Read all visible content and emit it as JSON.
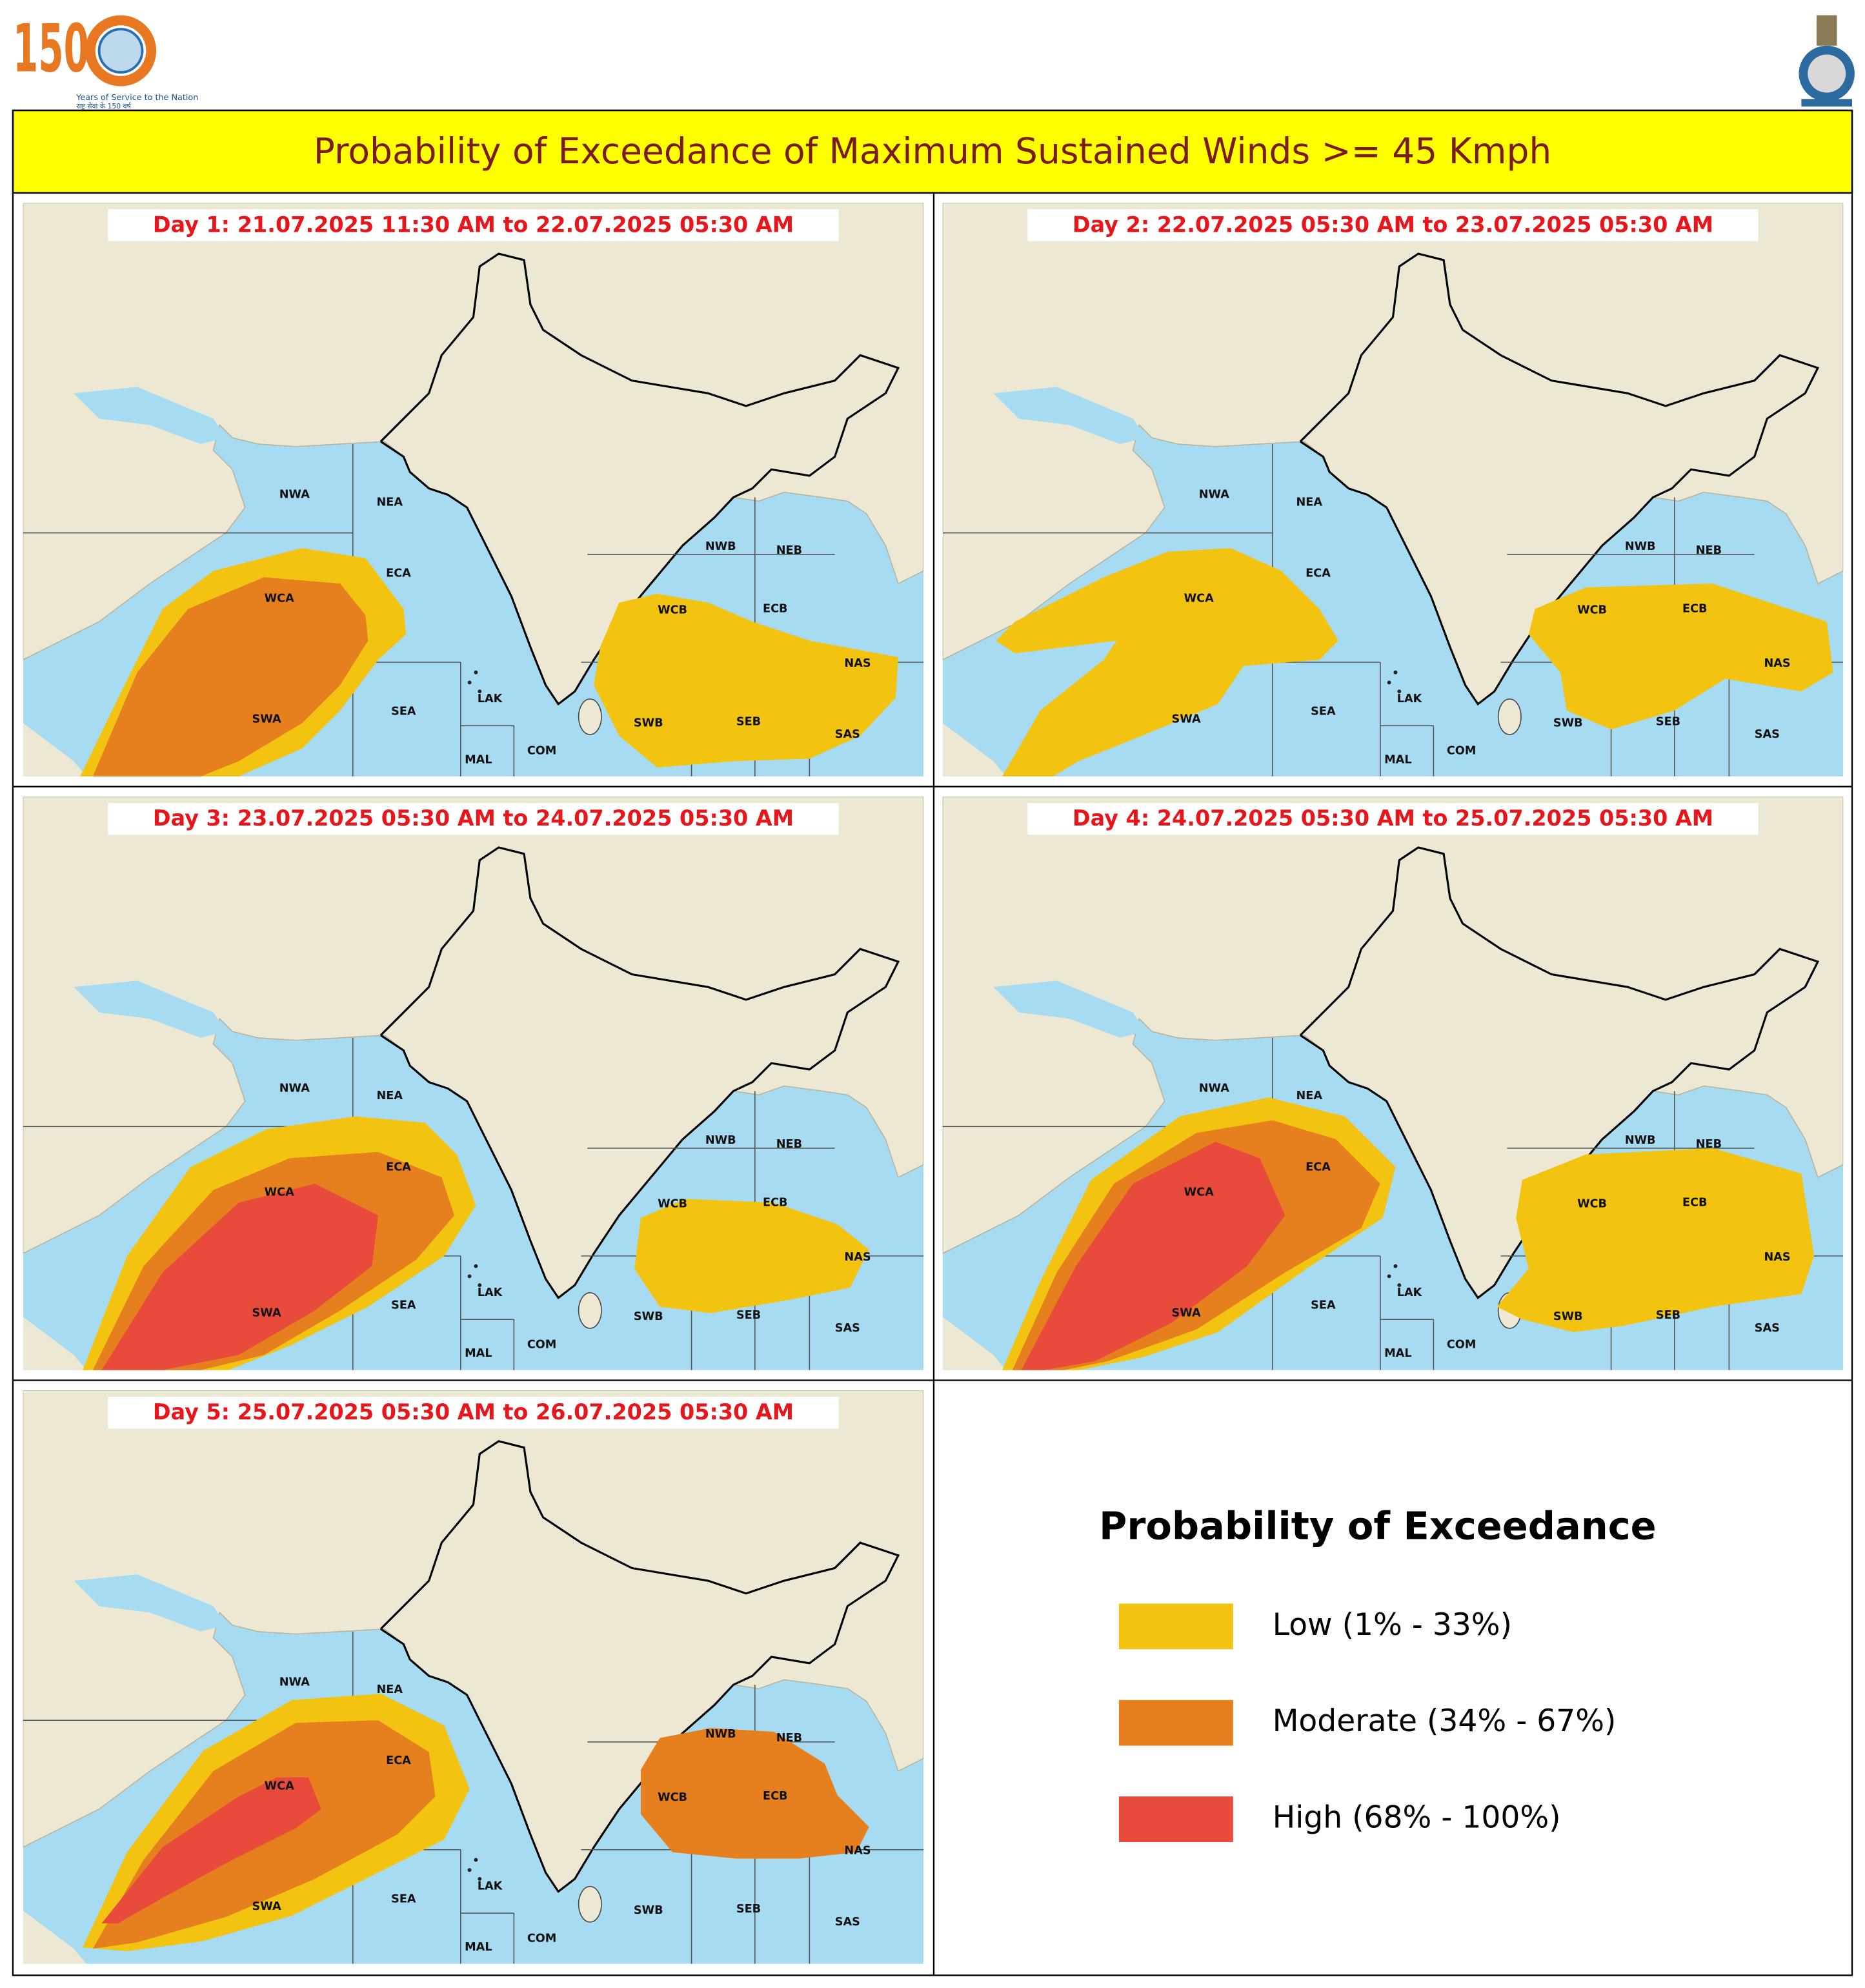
{
  "header": {
    "logo_number": "150",
    "logo_tagline": "Years of Service to the Nation",
    "logo_hindi": "राष्ट्र सेवा के 150 वर्ष"
  },
  "title": "Probability of Exceedance of Maximum Sustained Winds >= 45 Kmph",
  "regions": [
    "NWA",
    "NEA",
    "ECA",
    "WCA",
    "SWA",
    "SEA",
    "LAK",
    "MAL",
    "COM",
    "NWB",
    "NEB",
    "WCB",
    "ECB",
    "NAS",
    "SWB",
    "SEB",
    "SAS"
  ],
  "days": [
    {
      "label": "Day 1: 21.07.2025 11:30 AM to 22.07.2025 05:30 AM"
    },
    {
      "label": "Day 2: 22.07.2025 05:30 AM to 23.07.2025 05:30 AM"
    },
    {
      "label": "Day 3: 23.07.2025 05:30 AM to 24.07.2025 05:30 AM"
    },
    {
      "label": "Day 4: 24.07.2025 05:30 AM to 25.07.2025 05:30 AM"
    },
    {
      "label": "Day 5: 25.07.2025 05:30 AM to 26.07.2025 05:30 AM"
    }
  ],
  "legend": {
    "title": "Probability of Exceedance",
    "items": [
      {
        "label": "Low (1% - 33%)",
        "color": "#f2c311"
      },
      {
        "label": "Moderate (34% - 67%)",
        "color": "#e6801e"
      },
      {
        "label": "High (68% - 100%)",
        "color": "#e84a3c"
      }
    ]
  }
}
